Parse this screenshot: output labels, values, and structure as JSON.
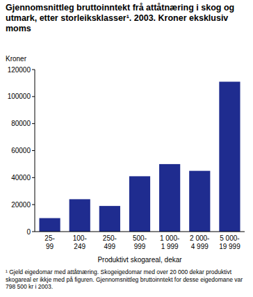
{
  "chart_data": {
    "type": "bar",
    "title": "Gjennomsnittleg bruttoinntekt frå attåtnæring i skog og utmark, etter storleiksklasser¹. 2003. Kroner eksklusiv moms",
    "y_label": "Kroner",
    "x_label": "Produktivt skogareal, dekar",
    "note": "¹ Gjeld eigedomar med attåtnæring. Skogeigedomar med over 20 000 dekar produktivt skogareal er ikkje med på figuren. Gjennomsnittleg bruttoinntekt for desse eigedomane var 798 500 kr i 2003.",
    "categories": [
      "25-99",
      "100-249",
      "250-499",
      "500-999",
      "1 000-1 999",
      "2 000-4 999",
      "5 000-19 999"
    ],
    "values": [
      10000,
      24000,
      19000,
      41000,
      50000,
      45000,
      111000
    ],
    "color": "#1f2c8f",
    "ylim": [
      0,
      120000
    ],
    "yticks": [
      0,
      20000,
      40000,
      60000,
      80000,
      100000,
      120000
    ],
    "grid": false
  }
}
